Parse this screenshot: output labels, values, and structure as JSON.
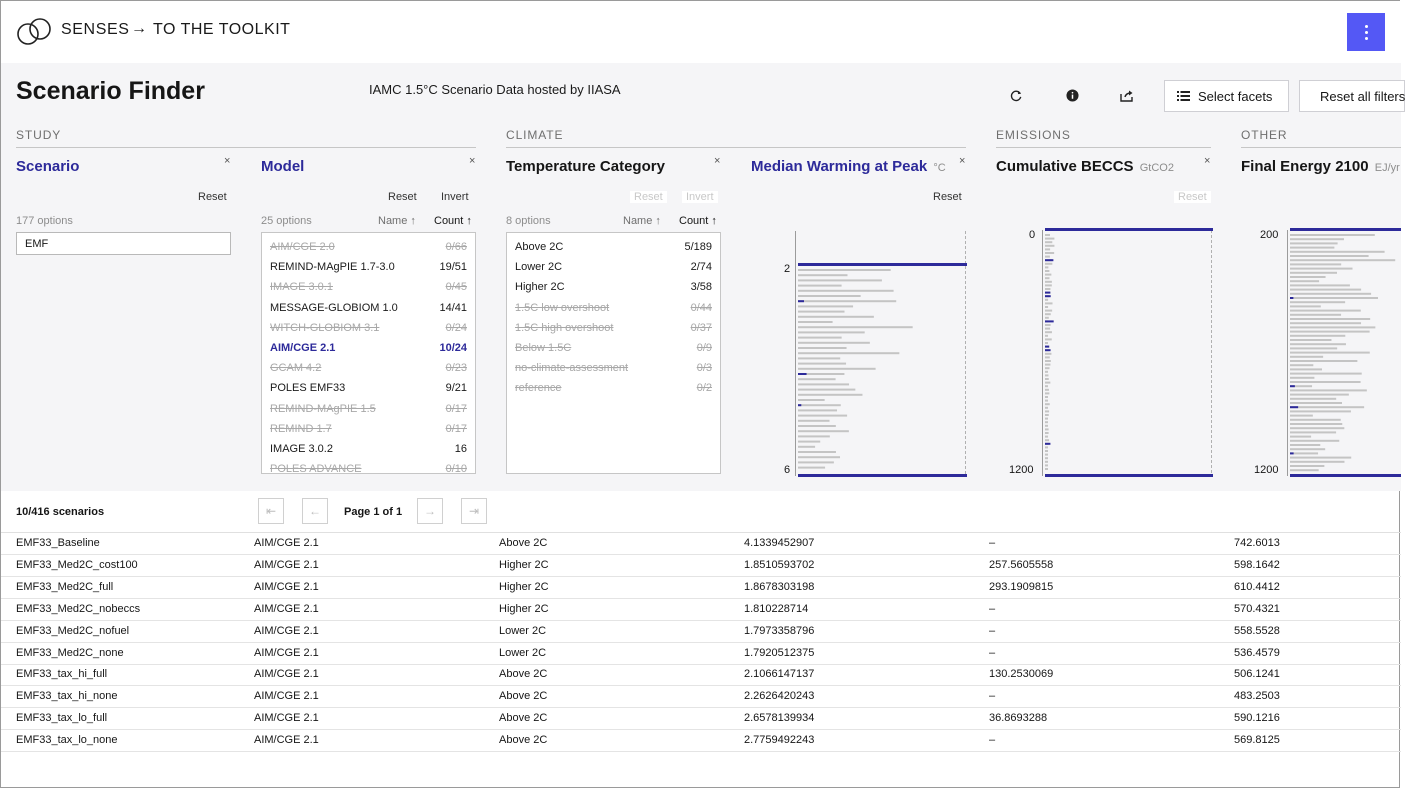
{
  "nav": {
    "brand": "SENSES",
    "arrow": "→",
    "link": "TO THE TOOLKIT"
  },
  "header": {
    "title": "Scenario Finder",
    "subtitle": "IAMC 1.5°C Scenario Data hosted by IIASA",
    "select_facets": "Select facets",
    "reset_all": "Reset all filters"
  },
  "sections": {
    "study": "STUDY",
    "climate": "CLIMATE",
    "emissions": "EMISSIONS",
    "other": "OTHER"
  },
  "facets": {
    "scenario": {
      "title": "Scenario",
      "close": "×",
      "reset": "Reset",
      "options": "177 options",
      "filter_value": "EMF"
    },
    "model": {
      "title": "Model",
      "close": "×",
      "reset": "Reset",
      "invert": "Invert",
      "options": "25 options",
      "sort_name": "Name ↑",
      "sort_count": "Count ↑",
      "items": [
        {
          "name": "AIM/CGE 2.0",
          "count": "0/66",
          "state": "dis"
        },
        {
          "name": "REMIND-MAgPIE 1.7-3.0",
          "count": "19/51",
          "state": ""
        },
        {
          "name": "IMAGE 3.0.1",
          "count": "0/45",
          "state": "dis"
        },
        {
          "name": "MESSAGE-GLOBIOM 1.0",
          "count": "14/41",
          "state": ""
        },
        {
          "name": "WITCH-GLOBIOM 3.1",
          "count": "0/24",
          "state": "dis"
        },
        {
          "name": "AIM/CGE 2.1",
          "count": "10/24",
          "state": "sel"
        },
        {
          "name": "GCAM 4.2",
          "count": "0/23",
          "state": "dis"
        },
        {
          "name": "POLES EMF33",
          "count": "9/21",
          "state": ""
        },
        {
          "name": "REMIND-MAgPIE 1.5",
          "count": "0/17",
          "state": "dis"
        },
        {
          "name": "REMIND 1.7",
          "count": "0/17",
          "state": "dis"
        },
        {
          "name": "IMAGE 3.0.2",
          "count": "16",
          "state": ""
        },
        {
          "name": "POLES ADVANCE",
          "count": "0/10",
          "state": "dis"
        }
      ]
    },
    "temperature": {
      "title": "Temperature Category",
      "close": "×",
      "reset": "Reset",
      "invert": "Invert",
      "options": "8 options",
      "sort_name": "Name ↑",
      "sort_count": "Count ↑",
      "items": [
        {
          "name": "Above 2C",
          "count": "5/189",
          "state": ""
        },
        {
          "name": "Lower 2C",
          "count": "2/74",
          "state": ""
        },
        {
          "name": "Higher 2C",
          "count": "3/58",
          "state": ""
        },
        {
          "name": "1.5C low overshoot",
          "count": "0/44",
          "state": "dis"
        },
        {
          "name": "1.5C high overshoot",
          "count": "0/37",
          "state": "dis"
        },
        {
          "name": "Below 1.5C",
          "count": "0/9",
          "state": "dis"
        },
        {
          "name": "no-climate-assessment",
          "count": "0/3",
          "state": "dis"
        },
        {
          "name": "reference",
          "count": "0/2",
          "state": "dis"
        }
      ]
    },
    "warming": {
      "title": "Median Warming at Peak",
      "unit": "°C",
      "close": "×",
      "reset": "Reset",
      "axis_top": "2",
      "axis_bottom": "6"
    },
    "beccs": {
      "title": "Cumulative BECCS",
      "unit": "GtCO2",
      "close": "×",
      "reset": "Reset",
      "axis_top": "0",
      "axis_bottom": "1200"
    },
    "final_energy": {
      "title": "Final Energy 2100",
      "unit": "EJ/yr",
      "axis_top": "200",
      "axis_bottom": "1200"
    }
  },
  "table": {
    "status": "10/416 scenarios",
    "page": "Page 1 of 1",
    "pager_icons": [
      "first-page",
      "previous-page",
      "next-page",
      "last-page"
    ],
    "rows": [
      [
        "EMF33_Baseline",
        "AIM/CGE 2.1",
        "Above 2C",
        "4.1339452907",
        "–",
        "742.6013"
      ],
      [
        "EMF33_Med2C_cost100",
        "AIM/CGE 2.1",
        "Higher 2C",
        "1.8510593702",
        "257.5605558",
        "598.1642"
      ],
      [
        "EMF33_Med2C_full",
        "AIM/CGE 2.1",
        "Higher 2C",
        "1.8678303198",
        "293.1909815",
        "610.4412"
      ],
      [
        "EMF33_Med2C_nobeccs",
        "AIM/CGE 2.1",
        "Higher 2C",
        "1.810228714",
        "–",
        "570.4321"
      ],
      [
        "EMF33_Med2C_nofuel",
        "AIM/CGE 2.1",
        "Lower 2C",
        "1.7973358796",
        "–",
        "558.5528"
      ],
      [
        "EMF33_Med2C_none",
        "AIM/CGE 2.1",
        "Lower 2C",
        "1.7920512375",
        "–",
        "536.4579"
      ],
      [
        "EMF33_tax_hi_full",
        "AIM/CGE 2.1",
        "Above 2C",
        "2.1066147137",
        "130.2530069",
        "506.1241"
      ],
      [
        "EMF33_tax_hi_none",
        "AIM/CGE 2.1",
        "Above 2C",
        "2.2626420243",
        "–",
        "483.2503"
      ],
      [
        "EMF33_tax_lo_full",
        "AIM/CGE 2.1",
        "Above 2C",
        "2.6578139934",
        "36.8693288",
        "590.1216"
      ],
      [
        "EMF33_tax_lo_none",
        "AIM/CGE 2.1",
        "Above 2C",
        "2.7759492243",
        "–",
        "569.8125"
      ]
    ]
  },
  "colors": {
    "accent": "#5458f5",
    "selected": "#2d2a9a",
    "band": "#f5f5f7"
  },
  "icons": {
    "refresh": "refresh-icon",
    "info": "info-icon",
    "share": "share-icon",
    "list": "list-icon",
    "reset": "x-circle-icon"
  }
}
